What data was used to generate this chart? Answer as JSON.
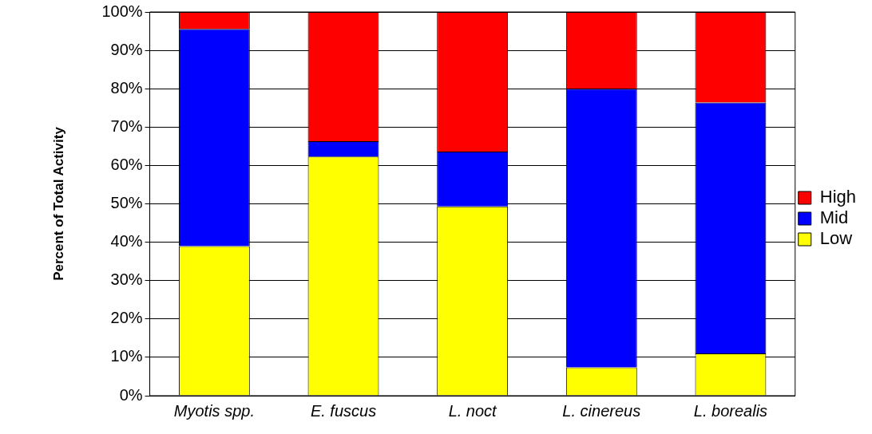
{
  "chart_data": {
    "type": "bar",
    "stacked": true,
    "ylabel": "Percent of Total Activity",
    "categories": [
      "Myotis spp.",
      "E. fuscus",
      "L. noct",
      "L. cinereus",
      "L. borealis"
    ],
    "series": [
      {
        "name": "Low",
        "color": "#ffff00",
        "values": [
          39,
          62.3,
          49.3,
          7.4,
          11
        ]
      },
      {
        "name": "Mid",
        "color": "#0000ff",
        "values": [
          56.6,
          4,
          14.3,
          72.6,
          65.4
        ]
      },
      {
        "name": "High",
        "color": "#ff0000",
        "values": [
          4.4,
          33.7,
          36.4,
          20,
          23.6
        ]
      }
    ],
    "ylim": [
      0,
      100
    ],
    "yticks": [
      {
        "value": 0,
        "label": "0%"
      },
      {
        "value": 10,
        "label": "10%"
      },
      {
        "value": 20,
        "label": "20%"
      },
      {
        "value": 30,
        "label": "30%"
      },
      {
        "value": 40,
        "label": "40%"
      },
      {
        "value": 50,
        "label": "50%"
      },
      {
        "value": 60,
        "label": "60%"
      },
      {
        "value": 70,
        "label": "70%"
      },
      {
        "value": 80,
        "label": "80%"
      },
      {
        "value": 90,
        "label": "90%"
      },
      {
        "value": 100,
        "label": "100%"
      }
    ],
    "grid": "y",
    "legend": "right"
  }
}
